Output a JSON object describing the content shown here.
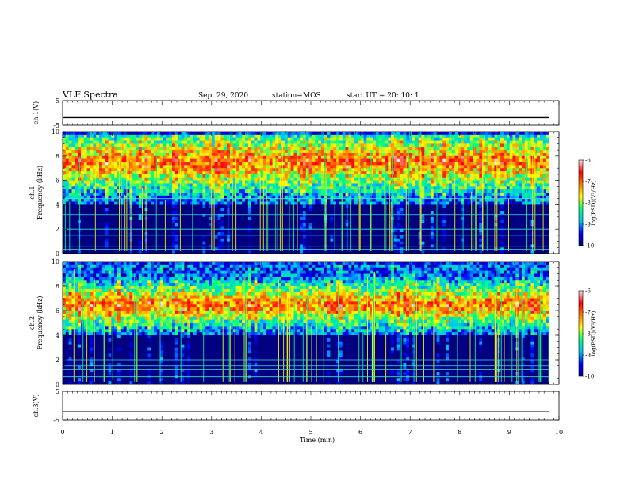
{
  "header": {
    "title": "VLF Spectra",
    "date": "Sep. 29, 2020",
    "station": "station=MOS",
    "start": "start UT =  20: 10: 1"
  },
  "chart_data": [
    {
      "type": "line",
      "panel": "ch1-voltage",
      "ylabel": "ch.1(V)",
      "ylim": [
        -5,
        5
      ],
      "ytick_labels": [
        "5",
        "-5"
      ],
      "xlim": [
        0,
        10
      ],
      "series": [
        {
          "x": [
            0,
            9.8
          ],
          "y": [
            -1.9,
            -1.9
          ]
        }
      ]
    },
    {
      "type": "heatmap",
      "panel": "ch1-spectrogram",
      "ylabel": "ch.1\nFrequency (kHz)",
      "ylim": [
        0,
        10
      ],
      "ytick_labels": [
        "0",
        "2",
        "4",
        "6",
        "8",
        "10"
      ],
      "xlim": [
        0,
        10
      ],
      "data_xmax": 9.8,
      "intense_band_khz": [
        5.5,
        9.5
      ],
      "line_frequencies_khz": [
        0.35,
        0.6,
        1.2,
        1.5,
        2.0,
        2.5,
        3.2,
        4.5
      ],
      "colorbar": {
        "label": "log(PSD)(V²/Hz)",
        "range": [
          -10,
          -6
        ],
        "tick_labels": [
          "-6",
          "-7",
          "-8",
          "-9",
          "-10"
        ]
      }
    },
    {
      "type": "heatmap",
      "panel": "ch2-spectrogram",
      "ylabel": "ch.2\nFrequency (kHz)",
      "ylim": [
        0,
        10
      ],
      "ytick_labels": [
        "0",
        "2",
        "4",
        "6",
        "8",
        "10"
      ],
      "xlim": [
        0,
        10
      ],
      "data_xmax": 9.8,
      "intense_band_khz": [
        5.0,
        8.0
      ],
      "line_frequencies_khz": [
        0.35,
        0.6,
        1.2,
        1.5,
        2.0
      ],
      "colorbar": {
        "label": "log(PSD)(V²/Hz)",
        "range": [
          -10,
          -6
        ],
        "tick_labels": [
          "-6",
          "-7",
          "-8",
          "-9",
          "-10"
        ]
      }
    },
    {
      "type": "line",
      "panel": "ch3-voltage",
      "ylabel": "ch.3(V)",
      "ylim": [
        -5,
        5
      ],
      "ytick_labels": [
        "5",
        "-5"
      ],
      "xlim": [
        0,
        10
      ],
      "series": [
        {
          "x": [
            0,
            9.8
          ],
          "y": [
            -1.9,
            -1.9
          ]
        }
      ]
    }
  ],
  "x_axis": {
    "label": "Time (min)",
    "tick_labels": [
      "0",
      "1",
      "2",
      "3",
      "4",
      "5",
      "6",
      "7",
      "8",
      "9",
      "10"
    ]
  },
  "colors": {
    "colormap": [
      "#000080",
      "#0000ff",
      "#00bfff",
      "#00ff80",
      "#ffff00",
      "#ff8000",
      "#ff0000",
      "#ffe6e6"
    ],
    "axis": "#000000",
    "line_cyan": "#40e0d0"
  }
}
